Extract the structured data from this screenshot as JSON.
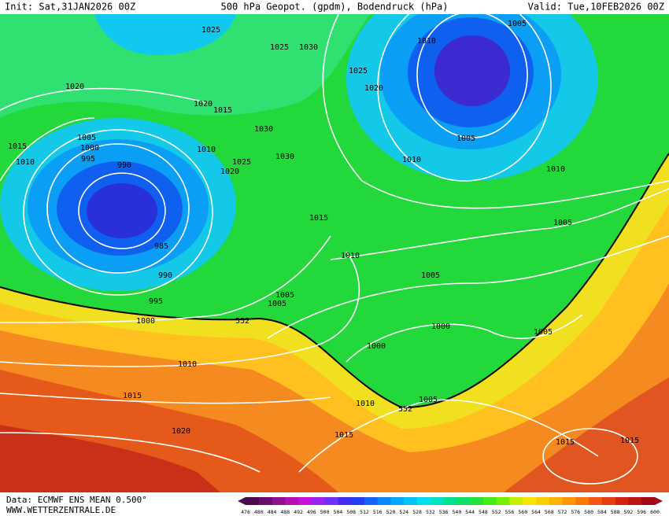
{
  "header": {
    "init": "Init: Sat,31JAN2026 00Z",
    "title": "500 hPa Geopot. (gpdm), Bodendruck (hPa)",
    "valid": "Valid: Tue,10FEB2026 00Z"
  },
  "isobar_labels": [
    1025,
    1025,
    1030,
    1020,
    1020,
    1015,
    1015,
    1005,
    1000,
    995,
    1010,
    990,
    1010,
    1030,
    1030,
    1025,
    1020,
    1025,
    1020,
    1010,
    1005,
    1005,
    1010,
    1010,
    1015,
    1005,
    985,
    1010,
    1005,
    990,
    1005,
    1005,
    995,
    1000,
    552,
    1000,
    1005,
    1000,
    1010,
    1015,
    1010,
    552,
    1005,
    1020,
    1015,
    1015,
    1015
  ],
  "colorbar": {
    "labels": [
      476,
      480,
      484,
      488,
      492,
      496,
      500,
      504,
      508,
      512,
      516,
      520,
      524,
      528,
      532,
      536,
      540,
      544,
      548,
      552,
      556,
      560,
      564,
      568,
      572,
      576,
      580,
      584,
      588,
      592,
      596,
      600
    ]
  },
  "footer": {
    "data": "Data: ECMWF ENS MEAN 0.500°",
    "url": "WWW.WETTERZENTRALE.DE"
  }
}
